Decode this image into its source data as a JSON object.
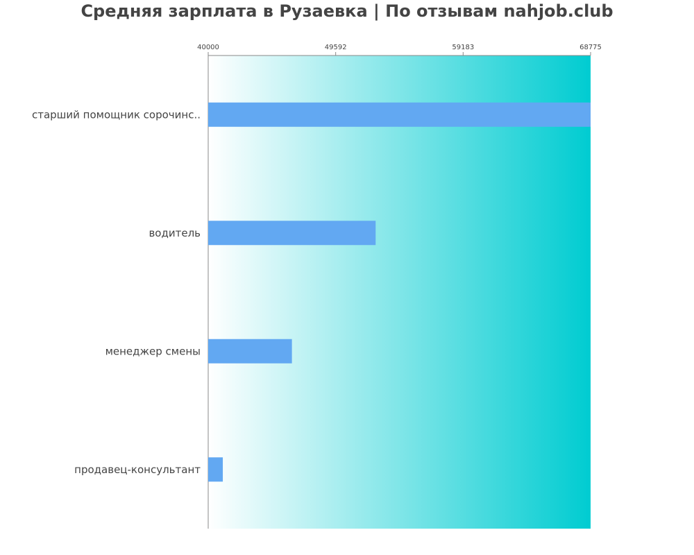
{
  "chart_data": {
    "type": "bar",
    "orientation": "horizontal",
    "title": "Средняя зарплата в Рузаевка | По отзывам nahjob.club",
    "categories": [
      "старший помощник сорочинс..",
      "водитель",
      "менеджер смены",
      "продавец-консультант"
    ],
    "values": [
      68775,
      52600,
      46300,
      41100
    ],
    "ticks": [
      40000,
      49592,
      59183,
      68775
    ],
    "tick_labels": [
      "40000",
      "49592",
      "59183",
      "68775"
    ],
    "xlim": [
      40000,
      68775
    ],
    "xlabel": "",
    "ylabel": "",
    "grid": false,
    "legend": "none",
    "tick_position": "top"
  },
  "colors": {
    "bar": "#62a8f2",
    "background_gradient_start": "#ffffff",
    "background_gradient_end": "#00ccd1",
    "axis": "#888888",
    "label_text": "#444444",
    "title_text": "#444444"
  }
}
